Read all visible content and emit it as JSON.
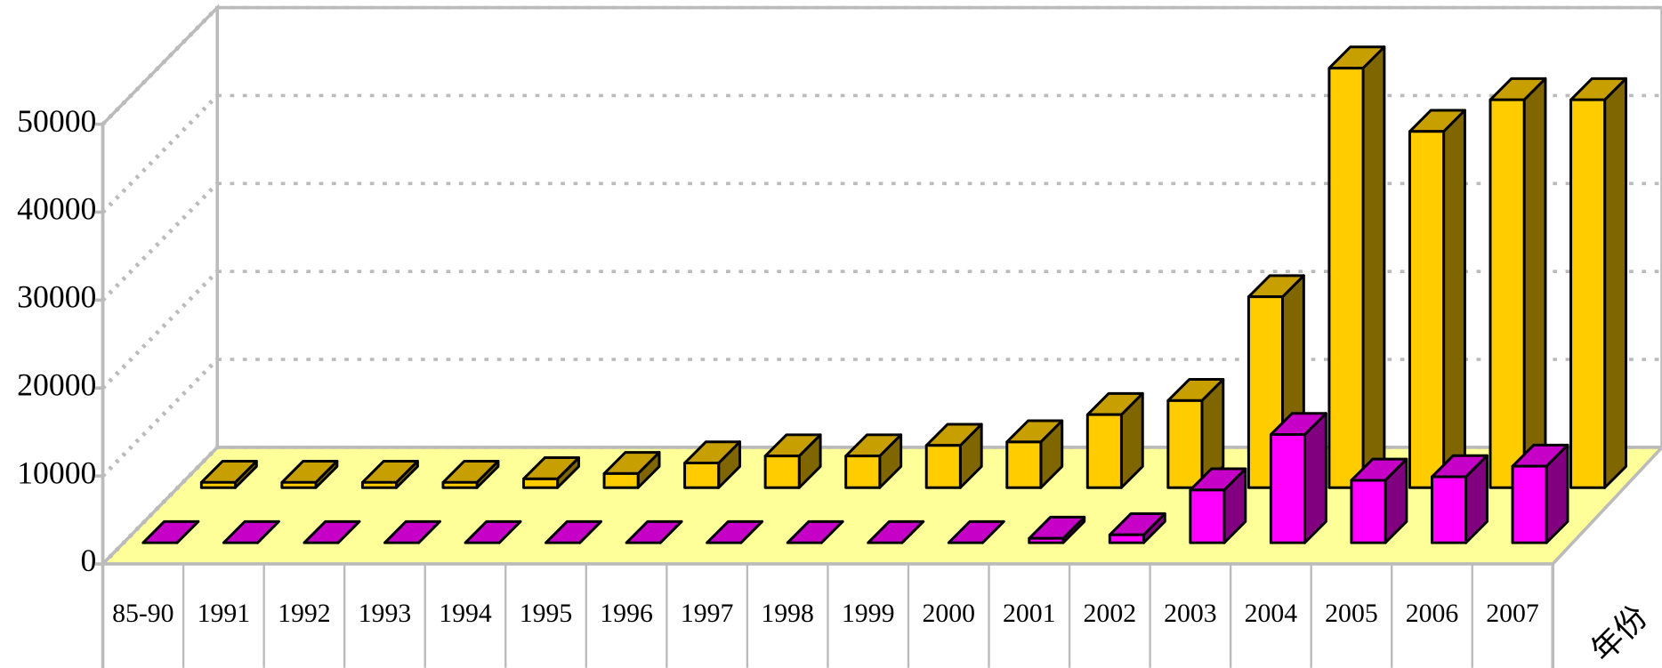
{
  "chart_data": {
    "type": "bar3d",
    "categories": [
      "85-90",
      "1991",
      "1992",
      "1993",
      "1994",
      "1995",
      "1996",
      "1997",
      "1998",
      "1999",
      "2000",
      "2001",
      "2002",
      "2003",
      "2004",
      "2005",
      "2006",
      "2007"
    ],
    "series": [
      {
        "color": "#FFCC00",
        "values": [
          600,
          600,
          600,
          600,
          1000,
          1600,
          2800,
          3600,
          3600,
          4800,
          5200,
          8300,
          9900,
          21700,
          47700,
          40500,
          44100,
          44100
        ]
      },
      {
        "color": "#FF00FF",
        "values": [
          0,
          0,
          0,
          0,
          0,
          0,
          0,
          0,
          0,
          0,
          0,
          500,
          900,
          6000,
          12300,
          7100,
          7500,
          8700
        ]
      }
    ],
    "x_label": "年份",
    "ylim": [
      0,
      50000
    ],
    "yticks": [
      0,
      10000,
      20000,
      30000,
      40000,
      50000
    ],
    "grid": true
  }
}
